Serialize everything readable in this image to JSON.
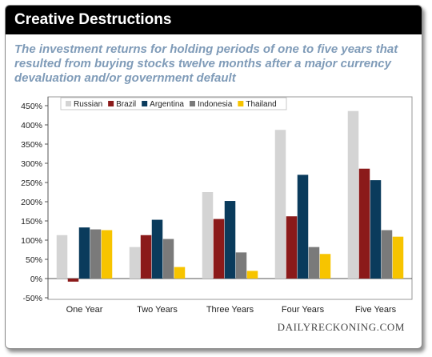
{
  "header": {
    "title": "Creative Destructions"
  },
  "subtitle_lines": [
    "The investment returns for holding periods of one to five years that",
    "resulted from buying stocks twelve months after a major currency",
    "devaluation and/or government default"
  ],
  "watermark": "DAILYRECKONING.COM",
  "chart_data": {
    "type": "bar",
    "title": "",
    "xlabel": "",
    "ylabel": "",
    "categories": [
      "One Year",
      "Two Years",
      "Three Years",
      "Four Years",
      "Five Years"
    ],
    "ylim": [
      -50,
      450
    ],
    "y_ticks": [
      -50,
      0,
      50,
      100,
      150,
      200,
      250,
      300,
      350,
      400,
      450
    ],
    "y_tick_labels": [
      "-50%",
      "0%",
      "50%",
      "100%",
      "150%",
      "200%",
      "250%",
      "300%",
      "350%",
      "400%",
      "450%"
    ],
    "grid": false,
    "legend_position": "top-left",
    "series": [
      {
        "name": "Russian",
        "color": "#d4d4d4",
        "values": [
          113,
          82,
          225,
          387,
          436
        ]
      },
      {
        "name": "Brazil",
        "color": "#8b1a1a",
        "values": [
          -8,
          113,
          155,
          162,
          286
        ]
      },
      {
        "name": "Argentina",
        "color": "#0a3b5c",
        "values": [
          133,
          153,
          202,
          270,
          256
        ]
      },
      {
        "name": "Indonesia",
        "color": "#7a7a7a",
        "values": [
          128,
          103,
          68,
          82,
          126
        ]
      },
      {
        "name": "Thailand",
        "color": "#f7c400",
        "values": [
          126,
          30,
          20,
          64,
          109
        ]
      }
    ]
  }
}
